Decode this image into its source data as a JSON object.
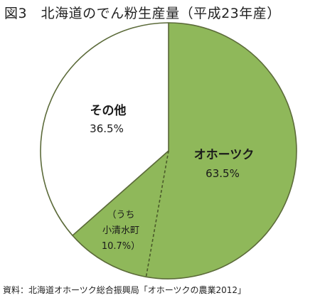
{
  "title": "図3　北海道のでん粉生産量（平成23年産）",
  "source": "資料：北海道オホーツク総合振興局「オホーツクの農業2012」",
  "chart_data": {
    "type": "pie",
    "slices": [
      {
        "label": "オホーツク",
        "value_label": "63.5%",
        "value": 63.5,
        "color": "#8fb85a"
      },
      {
        "label": "その他",
        "value_label": "36.5%",
        "value": 36.5,
        "color": "#ffffff"
      }
    ],
    "sub_slice": {
      "of": "オホーツク",
      "label_lines": [
        "（うち",
        "小清水町",
        "10.7%）"
      ],
      "value": 10.7,
      "divider_style": "dashed"
    },
    "start": "12 o'clock",
    "direction": "clockwise"
  }
}
